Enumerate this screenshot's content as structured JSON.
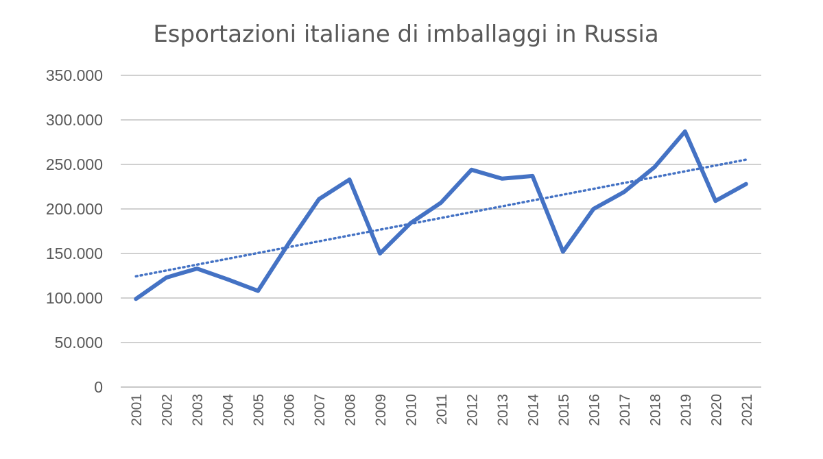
{
  "chart_data": {
    "type": "line",
    "title": "Esportazioni italiane di imballaggi in Russia",
    "xlabel": "",
    "ylabel": "",
    "ylim": [
      0,
      350000
    ],
    "yticks": [
      0,
      50000,
      100000,
      150000,
      200000,
      250000,
      300000,
      350000
    ],
    "ytick_labels": [
      "0",
      "50.000",
      "100.000",
      "150.000",
      "200.000",
      "250.000",
      "300.000",
      "350.000"
    ],
    "categories": [
      "2001",
      "2002",
      "2003",
      "2004",
      "2005",
      "2006",
      "2007",
      "2008",
      "2009",
      "2010",
      "2011",
      "2012",
      "2013",
      "2014",
      "2015",
      "2016",
      "2017",
      "2018",
      "2019",
      "2020",
      "2021"
    ],
    "series": [
      {
        "values": [
          99000,
          123000,
          133000,
          121000,
          108000,
          161000,
          211000,
          233000,
          150000,
          184000,
          207000,
          244000,
          234000,
          237000,
          152000,
          200000,
          219000,
          247000,
          287000,
          209000,
          228000
        ],
        "color": "#4472c4"
      }
    ],
    "trendline": {
      "type": "linear",
      "style": "dotted",
      "color": "#4472c4"
    },
    "grid": true,
    "legend": "none"
  }
}
